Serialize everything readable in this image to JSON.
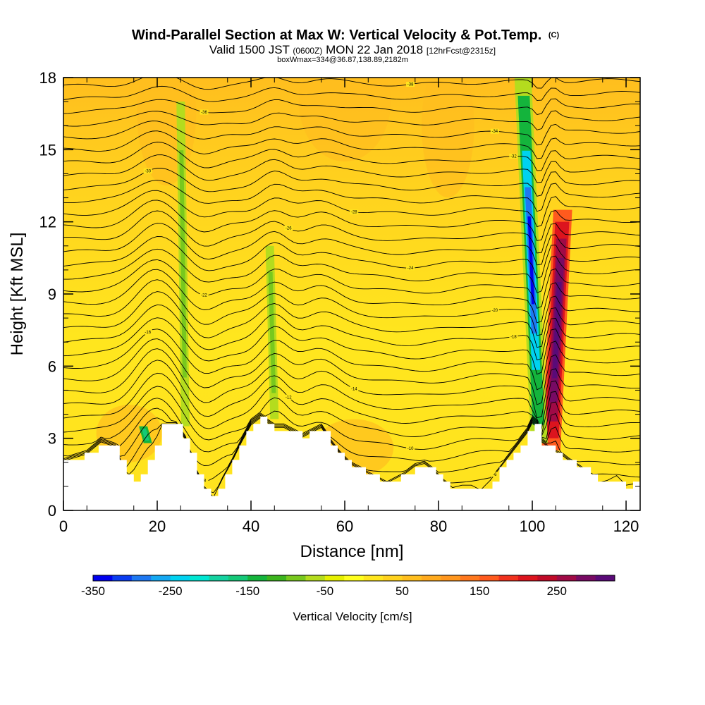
{
  "header": {
    "title": "Wind-Parallel Section at Max W: Vertical Velocity & Pot.Temp.",
    "copyright": "(C)",
    "valid_prefix": "Valid 1500 JST",
    "valid_utc": "(0600Z)",
    "valid_date": "MON 22 Jan 2018",
    "forecast": "[12hrFcst@2315z]",
    "boxinfo": "boxWmax=334@36.87,138.89,2182m"
  },
  "chart_data": {
    "type": "heatmap",
    "title": "Wind-Parallel Section at Max W: Vertical Velocity & Pot.Temp.",
    "xlabel": "Distance [nm]",
    "ylabel": "Height [Kft MSL]",
    "xlim": [
      0,
      123
    ],
    "ylim": [
      0,
      18
    ],
    "x_ticks": [
      "0",
      "20",
      "40",
      "60",
      "80",
      "100",
      "120"
    ],
    "y_ticks": [
      "0",
      "3",
      "6",
      "9",
      "12",
      "15",
      "18"
    ],
    "colorbar": {
      "label": "Vertical Velocity [cm/s]",
      "min": -350,
      "max": 300,
      "step": 25,
      "tick_labels": [
        "-350",
        "-250",
        "-150",
        "-50",
        "50",
        "150",
        "250"
      ],
      "colors": [
        "#0000ee",
        "#0a3cf0",
        "#1e78f2",
        "#14a8f2",
        "#00d2f0",
        "#00e6d2",
        "#14d2a0",
        "#14c878",
        "#14b43c",
        "#3cb41e",
        "#78c81e",
        "#b4dc1e",
        "#e6f000",
        "#ffff1e",
        "#ffe61e",
        "#ffd21e",
        "#ffbe1e",
        "#ffaa1e",
        "#ff961e",
        "#ff781e",
        "#ff5a1e",
        "#f0321e",
        "#dc141e",
        "#c00a28",
        "#a00a46",
        "#780a64",
        "#5a0a78"
      ]
    },
    "terrain_kft": [
      [
        0,
        2.0
      ],
      [
        5,
        2.3
      ],
      [
        8,
        2.8
      ],
      [
        11,
        2.6
      ],
      [
        13,
        1.6
      ],
      [
        15,
        1.3
      ],
      [
        17,
        1.6
      ],
      [
        19,
        2.6
      ],
      [
        21,
        3.5
      ],
      [
        24,
        3.5
      ],
      [
        26,
        2.9
      ],
      [
        28,
        1.7
      ],
      [
        30,
        0.9
      ],
      [
        32,
        0.5
      ],
      [
        34,
        1.3
      ],
      [
        36,
        2.0
      ],
      [
        38,
        2.8
      ],
      [
        40,
        3.5
      ],
      [
        42,
        3.8
      ],
      [
        45,
        3.4
      ],
      [
        47,
        3.4
      ],
      [
        49,
        3.2
      ],
      [
        51,
        3.0
      ],
      [
        53,
        3.2
      ],
      [
        55,
        3.4
      ],
      [
        57,
        2.8
      ],
      [
        59,
        2.3
      ],
      [
        61,
        1.9
      ],
      [
        63,
        1.7
      ],
      [
        65,
        1.5
      ],
      [
        67,
        1.3
      ],
      [
        69,
        1.1
      ],
      [
        71,
        1.3
      ],
      [
        73,
        1.5
      ],
      [
        75,
        1.8
      ],
      [
        77,
        1.9
      ],
      [
        79,
        1.6
      ],
      [
        81,
        1.2
      ],
      [
        83,
        0.9
      ],
      [
        85,
        1.0
      ],
      [
        87,
        1.0
      ],
      [
        89,
        0.8
      ],
      [
        91,
        1.2
      ],
      [
        93,
        1.7
      ],
      [
        95,
        2.2
      ],
      [
        97,
        2.7
      ],
      [
        99,
        3.2
      ],
      [
        100,
        3.6
      ],
      [
        101,
        3.4
      ],
      [
        102,
        2.8
      ],
      [
        104,
        2.5
      ],
      [
        106,
        2.3
      ],
      [
        108,
        2.0
      ],
      [
        110,
        1.8
      ],
      [
        112,
        1.5
      ],
      [
        114,
        1.1
      ],
      [
        116,
        1.2
      ],
      [
        118,
        1.4
      ],
      [
        120,
        1.0
      ],
      [
        123,
        1.1
      ]
    ],
    "vertical_velocity_features": [
      {
        "x_nm": 104,
        "z_from_kft": 2.5,
        "z_to_kft": 12.5,
        "w_cm_s": 300
      },
      {
        "x_nm": 101.5,
        "z_from_kft": 2.8,
        "z_to_kft": 18,
        "w_cm_s": -350
      },
      {
        "x_nm": 26,
        "z_from_kft": 3.5,
        "z_to_kft": 17,
        "w_cm_s": -75
      },
      {
        "x_nm": 45,
        "z_from_kft": 3.8,
        "z_to_kft": 11,
        "w_cm_s": -75
      },
      {
        "x_nm": 18,
        "z_from_kft": 2.8,
        "z_to_kft": 3.5,
        "w_cm_s": -150
      }
    ],
    "theta_contour_labels": [
      "-6",
      "-8",
      "-10",
      "-12",
      "-14",
      "-16",
      "-18",
      "-20",
      "-22",
      "-24",
      "-26",
      "-28",
      "-30",
      "-32",
      "-34",
      "-36",
      "-38"
    ]
  }
}
